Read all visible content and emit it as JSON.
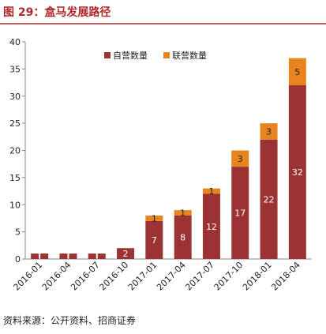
{
  "chart_data": {
    "type": "bar",
    "stacked": true,
    "title": "图 29：盒马发展路径",
    "source": "资料来源：公开资料、招商证券",
    "categories": [
      "2016-01",
      null,
      "2016-04",
      null,
      "2016-07",
      null,
      "2016-10",
      "2017-01",
      "2017-04",
      "2017-07",
      "2017-10",
      "2018-01",
      "2018-04"
    ],
    "series": [
      {
        "name": "自营数量",
        "color": "#9b3234",
        "values": [
          1,
          1,
          1,
          1,
          1,
          1,
          2,
          7,
          8,
          12,
          17,
          22,
          32
        ],
        "value_labels": [
          null,
          null,
          null,
          null,
          null,
          null,
          "2",
          "7",
          "8",
          "12",
          "17",
          "22",
          "32"
        ]
      },
      {
        "name": "联营数量",
        "color": "#e8841f",
        "values": [
          0,
          0,
          0,
          0,
          0,
          0,
          0,
          1,
          1,
          1,
          3,
          3,
          5
        ],
        "value_labels": [
          null,
          null,
          null,
          null,
          null,
          null,
          null,
          "1",
          "1",
          "1",
          "3",
          "3",
          "5"
        ]
      }
    ],
    "ylim": [
      0,
      40
    ],
    "yticks": [
      0,
      5,
      10,
      15,
      20,
      25,
      30,
      35,
      40
    ],
    "legend": "top-left"
  }
}
